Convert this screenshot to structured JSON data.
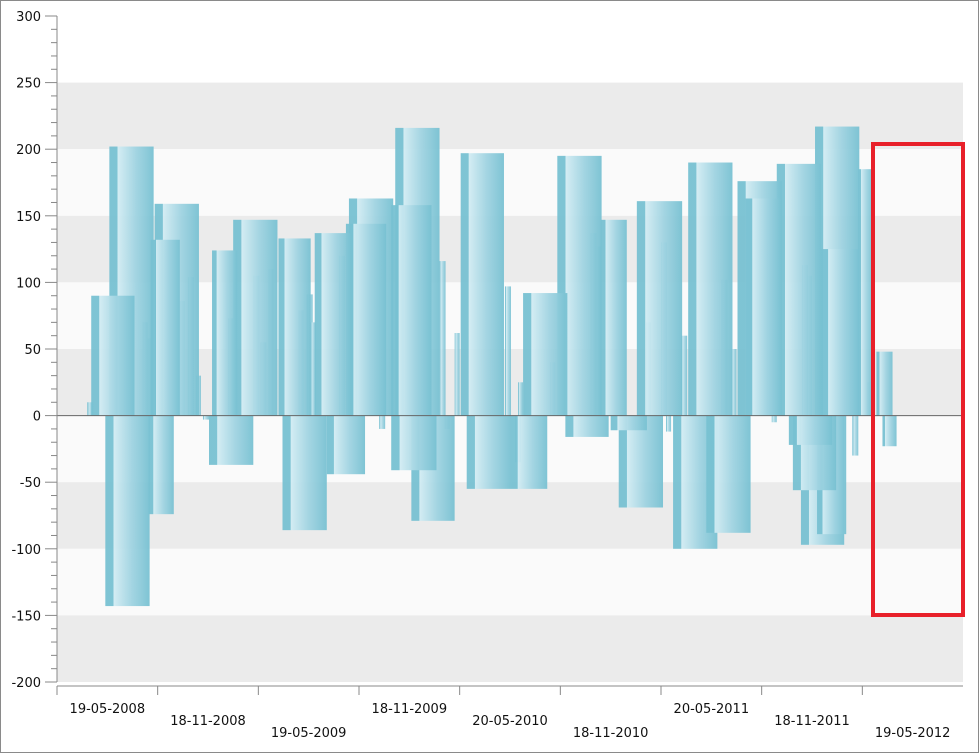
{
  "chart_data": {
    "type": "bar",
    "style": "cylinder",
    "title": "",
    "xlabel": "",
    "ylabel": "",
    "ylim": [
      -200,
      300
    ],
    "y_major_step": 50,
    "y_minor_step": 10,
    "y_ticks": [
      "300",
      "250",
      "200",
      "150",
      "100",
      "50",
      "0",
      "-50",
      "-100",
      "-150",
      "-200"
    ],
    "x_tick_labels": [
      "19-05-2008",
      "18-11-2008",
      "19-05-2009",
      "18-11-2009",
      "20-05-2010",
      "18-11-2010",
      "20-05-2011",
      "18-11-2011",
      "19-05-2012"
    ],
    "x_range_intervals": [
      0,
      9
    ],
    "grid": "alternating horizontal bands",
    "colors": {
      "bar_dark": "#78c1d2",
      "bar_light": "#d2ecf3",
      "band": "#ebebeb",
      "band_alt": "#fafafa",
      "highlight": "#e8202a"
    },
    "bars_note": "each bar = [x start in date-interval units, width in interval units, value]",
    "bars": [
      [
        0.34,
        0.43,
        90
      ],
      [
        0.52,
        0.44,
        202
      ],
      [
        0.48,
        0.44,
        -143
      ],
      [
        0.91,
        0.25,
        -74
      ],
      [
        0.97,
        0.44,
        159
      ],
      [
        0.93,
        0.29,
        132
      ],
      [
        1.51,
        0.44,
        -37
      ],
      [
        1.54,
        0.25,
        124
      ],
      [
        1.75,
        0.44,
        147
      ],
      [
        2.2,
        0.32,
        133
      ],
      [
        2.24,
        0.44,
        -86
      ],
      [
        2.56,
        0.36,
        137
      ],
      [
        2.68,
        0.38,
        -44
      ],
      [
        2.9,
        0.44,
        163
      ],
      [
        2.87,
        0.4,
        144
      ],
      [
        3.36,
        0.44,
        216
      ],
      [
        3.32,
        0.4,
        158
      ],
      [
        3.32,
        0.45,
        -41
      ],
      [
        3.52,
        0.43,
        -79
      ],
      [
        4.01,
        0.43,
        197
      ],
      [
        4.07,
        0.44,
        -55
      ],
      [
        4.51,
        0.36,
        -55
      ],
      [
        4.63,
        0.44,
        92
      ],
      [
        4.97,
        0.44,
        195
      ],
      [
        5.05,
        0.43,
        -16
      ],
      [
        5.4,
        0.26,
        147
      ],
      [
        5.5,
        0.36,
        -11
      ],
      [
        5.58,
        0.44,
        -69
      ],
      [
        5.76,
        0.45,
        161
      ],
      [
        6.12,
        0.44,
        -100
      ],
      [
        6.27,
        0.44,
        190
      ],
      [
        6.45,
        0.44,
        -88
      ],
      [
        6.76,
        0.44,
        176
      ],
      [
        6.84,
        0.36,
        163
      ],
      [
        7.15,
        0.44,
        189
      ],
      [
        7.27,
        0.43,
        -22
      ],
      [
        7.31,
        0.43,
        -56
      ],
      [
        7.53,
        0.44,
        217
      ],
      [
        7.39,
        0.43,
        -97
      ],
      [
        7.59,
        0.38,
        125
      ],
      [
        7.55,
        0.29,
        -89
      ],
      [
        7.96,
        0.14,
        185
      ],
      [
        8.14,
        0.16,
        48
      ],
      [
        8.2,
        0.14,
        -23
      ]
    ],
    "thin_bars": [
      [
        0.3,
        0.06,
        10
      ],
      [
        0.85,
        0.05,
        70
      ],
      [
        0.9,
        0.05,
        58
      ],
      [
        1.22,
        0.05,
        86
      ],
      [
        1.3,
        0.06,
        104
      ],
      [
        1.38,
        0.05,
        30
      ],
      [
        1.45,
        0.06,
        -3
      ],
      [
        1.7,
        0.05,
        73
      ],
      [
        1.95,
        0.06,
        105
      ],
      [
        2.02,
        0.06,
        55
      ],
      [
        2.1,
        0.05,
        110
      ],
      [
        2.4,
        0.05,
        79
      ],
      [
        2.48,
        0.06,
        91
      ],
      [
        2.52,
        0.05,
        70
      ],
      [
        2.8,
        0.06,
        120
      ],
      [
        3.1,
        0.05,
        50
      ],
      [
        3.2,
        0.06,
        -10
      ],
      [
        3.0,
        0.05,
        90
      ],
      [
        3.8,
        0.06,
        116
      ],
      [
        3.85,
        0.05,
        -10
      ],
      [
        3.95,
        0.05,
        62
      ],
      [
        4.45,
        0.06,
        97
      ],
      [
        4.55,
        0.06,
        -35
      ],
      [
        4.58,
        0.05,
        25
      ],
      [
        4.9,
        0.05,
        40
      ],
      [
        5.3,
        0.06,
        137
      ],
      [
        5.35,
        0.05,
        127
      ],
      [
        5.85,
        0.05,
        70
      ],
      [
        6.0,
        0.06,
        130
      ],
      [
        6.05,
        0.05,
        -12
      ],
      [
        6.2,
        0.06,
        60
      ],
      [
        6.6,
        0.06,
        102
      ],
      [
        6.7,
        0.05,
        50
      ],
      [
        7.05,
        0.06,
        130
      ],
      [
        7.1,
        0.05,
        -5
      ],
      [
        7.4,
        0.06,
        113
      ],
      [
        7.45,
        0.05,
        105
      ],
      [
        7.85,
        0.05,
        65
      ],
      [
        7.9,
        0.06,
        -30
      ],
      [
        8.05,
        0.05,
        25
      ]
    ]
  },
  "annotation": {
    "type": "highlight-rectangle"
  }
}
